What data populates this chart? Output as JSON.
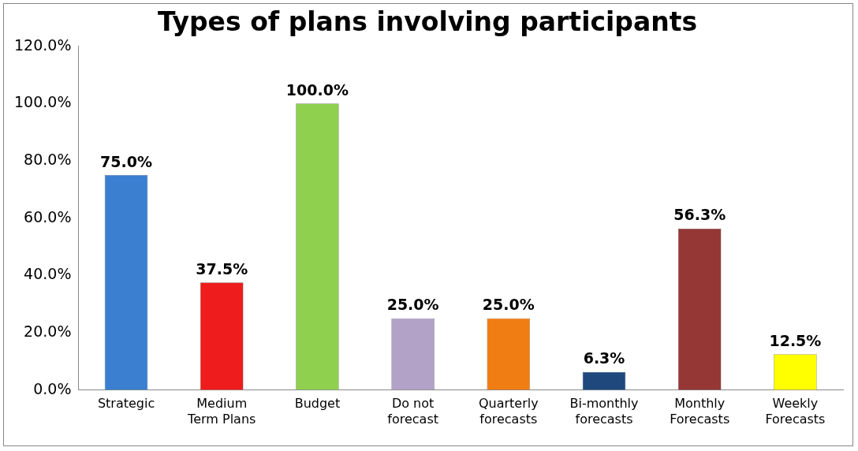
{
  "chart_data": {
    "type": "bar",
    "title": "Types of plans involving participants",
    "categories": [
      "Strategic",
      "Medium\nTerm Plans",
      "Budget",
      "Do not\nforecast",
      "Quarterly\nforecasts",
      "Bi-monthly\nforecasts",
      "Monthly\nForecasts",
      "Weekly\nForecasts"
    ],
    "values": [
      75.0,
      37.5,
      100.0,
      25.0,
      25.0,
      6.3,
      56.3,
      12.5
    ],
    "colors": [
      "#3a7fd0",
      "#ee1c1c",
      "#8fd14f",
      "#b3a2c7",
      "#f07d14",
      "#1f497d",
      "#953735",
      "#ffff00"
    ],
    "value_labels": [
      "75.0%",
      "37.5%",
      "100.0%",
      "25.0%",
      "25.0%",
      "6.3%",
      "56.3%",
      "12.5%"
    ],
    "ylim": [
      0,
      120
    ],
    "yticks": [
      {
        "value": 0,
        "label": "0.0%"
      },
      {
        "value": 20,
        "label": "20.0%"
      },
      {
        "value": 40,
        "label": "40.0%"
      },
      {
        "value": 60,
        "label": "60.0%"
      },
      {
        "value": 80,
        "label": "80.0%"
      },
      {
        "value": 100,
        "label": "100.0%"
      },
      {
        "value": 120,
        "label": "120.0%"
      }
    ],
    "grid": false,
    "legend": false
  }
}
